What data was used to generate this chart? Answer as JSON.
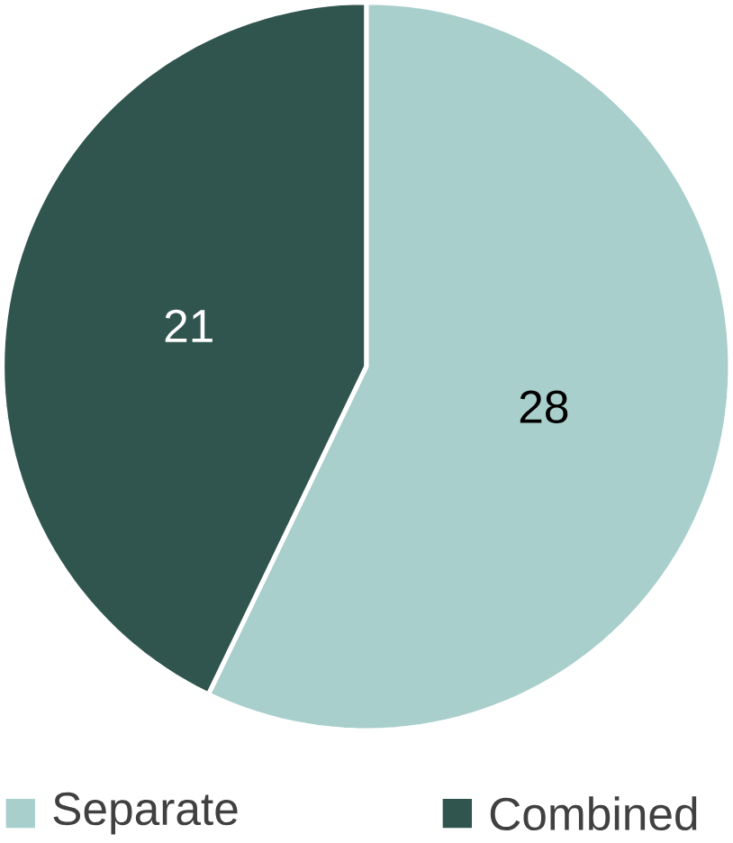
{
  "chart_data": {
    "type": "pie",
    "categories": [
      "Separate",
      "Combined"
    ],
    "values": [
      28,
      21
    ],
    "colors": [
      "#a8cfcc",
      "#30554f"
    ],
    "data_labels": true,
    "legend": "bottom"
  }
}
